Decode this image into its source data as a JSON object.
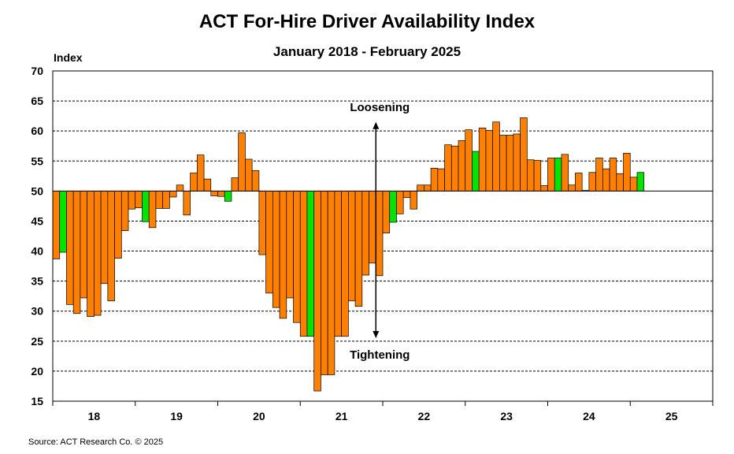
{
  "chart_data": {
    "type": "bar",
    "title": "ACT For-Hire Driver Availability Index",
    "subtitle": "January 2018 - February 2025",
    "ylabel": "Index",
    "ylim": [
      15,
      70
    ],
    "yticks": [
      15,
      20,
      25,
      30,
      35,
      40,
      45,
      50,
      55,
      60,
      65,
      70
    ],
    "baseline": 50,
    "x_start": "2018-01",
    "xticks": [
      {
        "label": "18",
        "year": 2018
      },
      {
        "label": "19",
        "year": 2019
      },
      {
        "label": "20",
        "year": 2020
      },
      {
        "label": "21",
        "year": 2021
      },
      {
        "label": "22",
        "year": 2022
      },
      {
        "label": "23",
        "year": 2023
      },
      {
        "label": "24",
        "year": 2024
      },
      {
        "label": "25",
        "year": 2025
      }
    ],
    "x_end_year": 2026,
    "grid": true,
    "series": [
      {
        "values": [
          38.7,
          39.8,
          31.1,
          29.6,
          32.2,
          29.1,
          29.3,
          34.6,
          31.7,
          38.8,
          43.4,
          47.0,
          47.2,
          44.9,
          43.9,
          47.1,
          47.1,
          49.0,
          51.0,
          46.0,
          53.0,
          56.0,
          52.0,
          49.2,
          49.1,
          48.3,
          52.2,
          59.7,
          55.3,
          53.4,
          39.4,
          33.0,
          30.6,
          28.8,
          32.2,
          28.1,
          25.8,
          25.8,
          16.7,
          19.4,
          19.4,
          25.8,
          25.8,
          31.7,
          30.8,
          36.0,
          38.0,
          35.9,
          43.0,
          44.8,
          46.2,
          48.9,
          47.0,
          51.0,
          51.0,
          53.8,
          53.7,
          57.7,
          57.5,
          58.4,
          60.2,
          56.6,
          60.5,
          60.1,
          61.5,
          59.3,
          59.3,
          59.5,
          62.2,
          55.2,
          55.1,
          50.9,
          55.5,
          55.5,
          56.1,
          51.0,
          53.0,
          50.1,
          53.1,
          55.5,
          53.7,
          55.5,
          52.9,
          56.3,
          52.3,
          53.1
        ],
        "colors": [
          "orange",
          "green",
          "orange",
          "orange",
          "orange",
          "orange",
          "orange",
          "orange",
          "orange",
          "orange",
          "orange",
          "orange",
          "orange",
          "green",
          "orange",
          "orange",
          "orange",
          "orange",
          "orange",
          "orange",
          "orange",
          "orange",
          "orange",
          "orange",
          "orange",
          "green",
          "orange",
          "orange",
          "orange",
          "orange",
          "orange",
          "orange",
          "orange",
          "orange",
          "orange",
          "orange",
          "orange",
          "green",
          "orange",
          "orange",
          "orange",
          "orange",
          "orange",
          "orange",
          "orange",
          "orange",
          "orange",
          "orange",
          "orange",
          "green",
          "orange",
          "orange",
          "orange",
          "orange",
          "orange",
          "orange",
          "orange",
          "orange",
          "orange",
          "orange",
          "orange",
          "green",
          "orange",
          "orange",
          "orange",
          "orange",
          "orange",
          "orange",
          "orange",
          "orange",
          "orange",
          "orange",
          "orange",
          "green",
          "orange",
          "orange",
          "orange",
          "orange",
          "orange",
          "orange",
          "orange",
          "orange",
          "orange",
          "orange",
          "orange",
          "green"
        ]
      }
    ],
    "palette": {
      "orange": "#ff8000",
      "green": "#00e400"
    },
    "annotations": {
      "loosening": "Loosening",
      "tightening": "Tightening"
    },
    "annotation_arrow": {
      "x": "2021-11",
      "from": 25.5,
      "to": 61.5
    },
    "source": "Source:  ACT Research Co. © 2025"
  }
}
